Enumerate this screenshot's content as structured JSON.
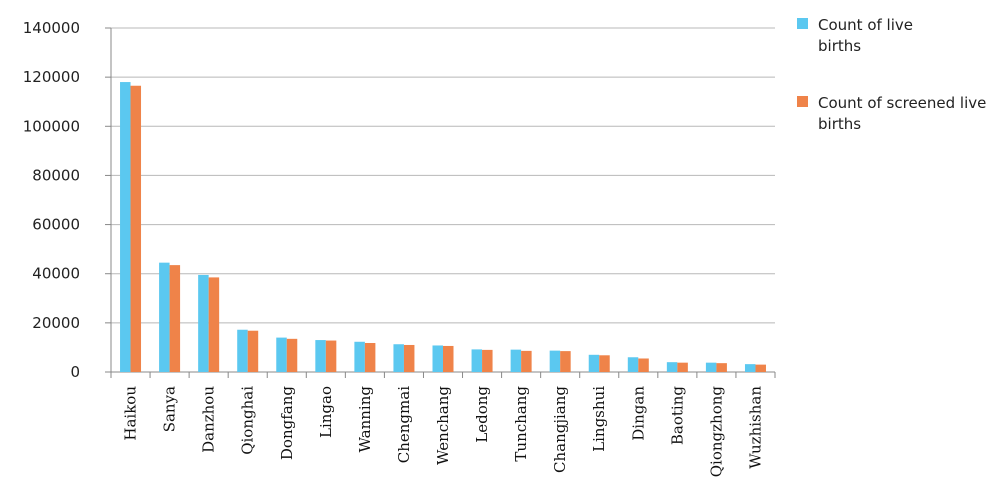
{
  "chart_data": {
    "type": "bar",
    "title": "",
    "xlabel": "",
    "ylabel": "",
    "ylim": [
      0,
      140000
    ],
    "yticks": [
      0,
      20000,
      40000,
      60000,
      80000,
      100000,
      120000,
      140000
    ],
    "grid": true,
    "legend_position": "right",
    "categories": [
      "Haikou",
      "Sanya",
      "Danzhou",
      "Qionghai",
      "Dongfang",
      "Lingao",
      "Wanning",
      "Chengmai",
      "Wenchang",
      "Ledong",
      "Tunchang",
      "Changjiang",
      "Lingshui",
      "Dingan",
      "Baoting",
      "Qiongzhong",
      "Wuzhishan"
    ],
    "series": [
      {
        "name": "Count of live births",
        "legend_lines": [
          "Count of live",
          "births"
        ],
        "color": "#5bc8f0",
        "values": [
          118000,
          44500,
          39500,
          17200,
          14000,
          13000,
          12300,
          11300,
          10800,
          9200,
          9100,
          8700,
          7000,
          6000,
          4000,
          3800,
          3200
        ]
      },
      {
        "name": "Count of screened live births",
        "legend_lines": [
          "Count of screened live",
          "births"
        ],
        "color": "#ef8349",
        "values": [
          116500,
          43500,
          38500,
          16800,
          13500,
          12800,
          11800,
          11000,
          10600,
          9000,
          8600,
          8500,
          6800,
          5500,
          3800,
          3600,
          3000
        ]
      }
    ]
  }
}
